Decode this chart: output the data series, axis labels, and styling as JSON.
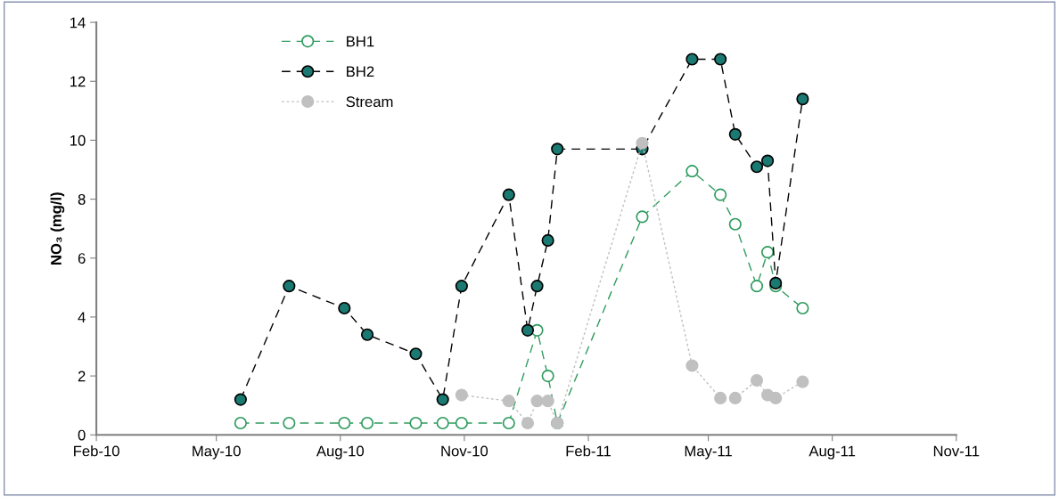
{
  "chart_data": {
    "type": "line",
    "ylabel": "NO₃ (mg/l)",
    "xlim": [
      "2010-02-01",
      "2011-11-01"
    ],
    "xticks": [
      {
        "value": "2010-02-01",
        "label": "Feb-10"
      },
      {
        "value": "2010-05-01",
        "label": "May-10"
      },
      {
        "value": "2010-08-01",
        "label": "Aug-10"
      },
      {
        "value": "2010-11-01",
        "label": "Nov-10"
      },
      {
        "value": "2011-02-01",
        "label": "Feb-11"
      },
      {
        "value": "2011-05-01",
        "label": "May-11"
      },
      {
        "value": "2011-08-01",
        "label": "Aug-11"
      },
      {
        "value": "2011-11-01",
        "label": "Nov-11"
      }
    ],
    "ylim": [
      0,
      14
    ],
    "yticks": [
      0,
      2,
      4,
      6,
      8,
      10,
      12,
      14
    ],
    "grid": false,
    "legend": "top left",
    "marker": "circle",
    "series": [
      {
        "name": "BH1",
        "color": "#2e9c5e",
        "line_style": "dashed",
        "x": [
          "2010-05-19",
          "2010-06-24",
          "2010-08-04",
          "2010-08-21",
          "2010-09-26",
          "2010-10-16",
          "2010-10-30",
          "2010-12-04",
          "2010-12-25",
          "2011-01-02",
          "2011-01-09",
          "2011-03-13",
          "2011-04-19",
          "2011-05-10",
          "2011-05-21",
          "2011-06-06",
          "2011-06-14",
          "2011-06-20",
          "2011-07-10"
        ],
        "values": [
          0.4,
          0.4,
          0.4,
          0.4,
          0.4,
          0.4,
          0.4,
          0.4,
          3.55,
          2.0,
          0.4,
          7.4,
          8.95,
          8.15,
          7.15,
          5.05,
          6.2,
          5.05,
          4.3
        ]
      },
      {
        "name": "BH2",
        "color": "#1a7a72",
        "line_style": "dashed",
        "x": [
          "2010-05-19",
          "2010-06-24",
          "2010-08-04",
          "2010-08-21",
          "2010-09-26",
          "2010-10-16",
          "2010-10-30",
          "2010-12-04",
          "2010-12-18",
          "2010-12-25",
          "2011-01-02",
          "2011-01-09",
          "2011-03-13",
          "2011-04-19",
          "2011-05-10",
          "2011-05-21",
          "2011-06-06",
          "2011-06-14",
          "2011-06-20",
          "2011-07-10"
        ],
        "values": [
          1.2,
          5.05,
          4.3,
          3.4,
          2.75,
          1.2,
          5.05,
          8.15,
          3.55,
          5.05,
          6.6,
          9.7,
          9.7,
          12.75,
          12.75,
          10.2,
          9.1,
          9.3,
          5.15,
          11.4
        ]
      },
      {
        "name": "Stream",
        "color": "#c0c0c0",
        "line_style": "dotted",
        "x": [
          "2010-10-30",
          "2010-12-04",
          "2010-12-18",
          "2010-12-25",
          "2011-01-02",
          "2011-01-09",
          "2011-03-13",
          "2011-04-19",
          "2011-05-10",
          "2011-05-21",
          "2011-06-06",
          "2011-06-14",
          "2011-06-20",
          "2011-07-10"
        ],
        "values": [
          1.35,
          1.15,
          0.4,
          1.15,
          1.15,
          0.4,
          9.9,
          2.35,
          1.25,
          1.25,
          1.85,
          1.35,
          1.25,
          1.8
        ]
      }
    ]
  }
}
